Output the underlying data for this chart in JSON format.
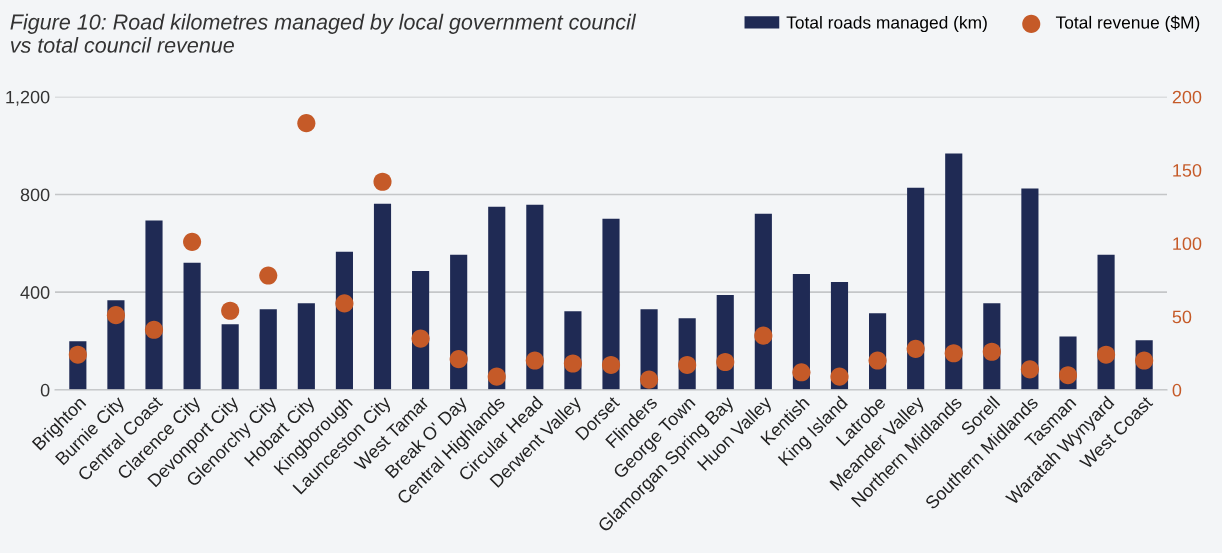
{
  "chart_data": {
    "type": "bar",
    "title": "Figure 10: Road kilometres managed by local government council\nvs total council revenue",
    "categories": [
      "Brighton",
      "Burnie City",
      "Central Coast",
      "Clarence City",
      "Devonport City",
      "Glenorchy City",
      "Hobart City",
      "Kingborough",
      "Launceston City",
      "West Tamar",
      "Break O' Day",
      "Central Highlands",
      "Circular Head",
      "Derwent Valley",
      "Dorset",
      "Flinders",
      "George Town",
      "Glamorgan Spring Bay",
      "Huon Valley",
      "Kentish",
      "King Island",
      "Latrobe",
      "Meander Valley",
      "Northern Midlands",
      "Sorell",
      "Southern Midlands",
      "Tasman",
      "Waratah Wynyard",
      "West Coast"
    ],
    "series": [
      {
        "name": "Total roads managed (km)",
        "color": "#1f2a54",
        "values": [
          199,
          367,
          693,
          520,
          269,
          330,
          355,
          565,
          762,
          487,
          553,
          750,
          758,
          322,
          701,
          330,
          293,
          388,
          721,
          474,
          442,
          314,
          828,
          968,
          355,
          824,
          219,
          553,
          203
        ]
      },
      {
        "name": "Total revenue ($M)",
        "type": "scatter",
        "axis": "y2",
        "color": "#c55a28",
        "values": [
          24,
          51,
          41,
          101,
          54,
          78,
          182,
          59,
          142,
          35,
          21,
          9,
          20,
          18,
          17,
          7,
          17,
          19,
          37,
          12,
          9,
          20,
          28,
          25,
          26,
          14,
          10,
          24,
          20
        ]
      }
    ],
    "ylim": [
      0,
      1200
    ],
    "yticks": [
      0,
      {
        "value": 400,
        "label": "400"
      },
      {
        "value": 800,
        "label": "800"
      },
      {
        "value": 1200,
        "label": "1,200"
      }
    ],
    "y2lim": [
      0,
      200
    ],
    "y2ticks": [
      0,
      50,
      100,
      150,
      200
    ],
    "grid": "y",
    "legend": "top right",
    "marker": "circle"
  }
}
